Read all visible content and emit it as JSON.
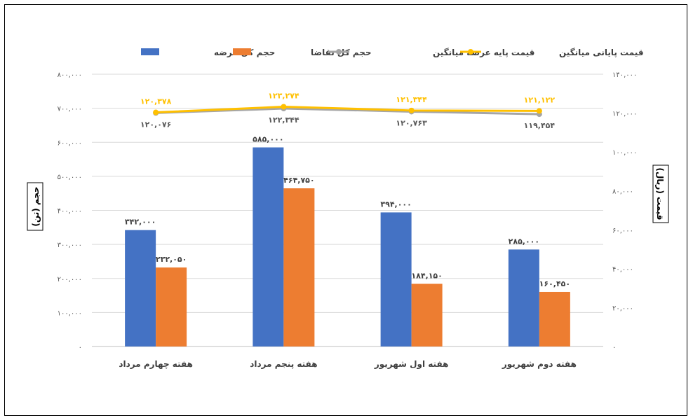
{
  "chart_data": {
    "type": "bar",
    "categories": [
      "هفته چهارم مرداد",
      "هفته پنجم مرداد",
      "هفته اول شهریور",
      "هفته دوم شهریور"
    ],
    "series": [
      {
        "name": "حجم کل عرضه",
        "kind": "bar",
        "axis": "left",
        "color": "#4472C4",
        "values": [
          342000,
          585000,
          394000,
          285000
        ],
        "labels": [
          "۳۴۲,۰۰۰",
          "۵۸۵,۰۰۰",
          "۳۹۴,۰۰۰",
          "۲۸۵,۰۰۰"
        ]
      },
      {
        "name": "حجم کل تقاضا",
        "kind": "bar",
        "axis": "left",
        "color": "#ED7D31",
        "values": [
          232050,
          464750,
          184150,
          160450
        ],
        "labels": [
          "۲۳۲,۰۵۰",
          "۴۶۴,۷۵۰",
          "۱۸۴,۱۵۰",
          "۱۶۰,۴۵۰"
        ]
      },
      {
        "name": "قیمت پایه عرضه میانگین",
        "kind": "line",
        "axis": "right",
        "color": "#A5A5A5",
        "values": [
          120076,
          122344,
          120763,
          119454
        ],
        "labels": [
          "۱۲۰,۰۷۶",
          "۱۲۲,۳۴۴",
          "۱۲۰,۷۶۳",
          "۱۱۹,۴۵۴"
        ]
      },
      {
        "name": "قیمت پایانی میانگین",
        "kind": "line",
        "axis": "right",
        "color": "#FFC000",
        "values": [
          120378,
          123274,
          121344,
          121122
        ],
        "labels": [
          "۱۲۰,۳۷۸",
          "۱۲۳,۲۷۴",
          "۱۲۱,۳۴۴",
          "۱۲۱,۱۲۲"
        ]
      }
    ],
    "ylabel": "حجم (تن)",
    "y2label": "قیمت (ریال)",
    "ylim": [
      0,
      800000
    ],
    "y2lim": [
      0,
      140000
    ],
    "yticks": [
      "۰",
      "۱۰۰,۰۰۰",
      "۲۰۰,۰۰۰",
      "۳۰۰,۰۰۰",
      "۴۰۰,۰۰۰",
      "۵۰۰,۰۰۰",
      "۶۰۰,۰۰۰",
      "۷۰۰,۰۰۰",
      "۸۰۰,۰۰۰"
    ],
    "y2ticks": [
      "۰",
      "۲۰,۰۰۰",
      "۴۰,۰۰۰",
      "۶۰,۰۰۰",
      "۸۰,۰۰۰",
      "۱۰۰,۰۰۰",
      "۱۲۰,۰۰۰",
      "۱۴۰,۰۰۰"
    ],
    "grid": true,
    "legend": "top"
  }
}
